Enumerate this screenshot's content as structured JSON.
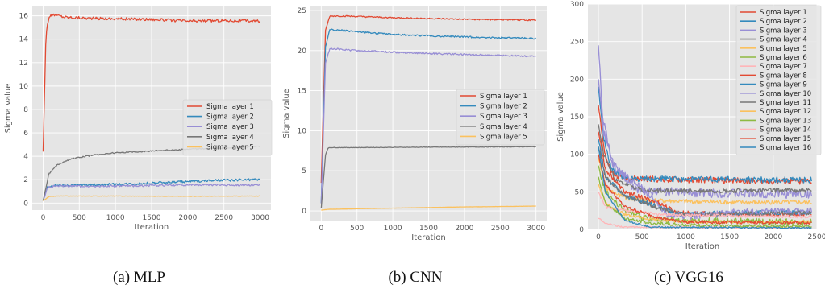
{
  "charts": [
    {
      "caption": "(a) MLP",
      "chart_data": {
        "type": "line",
        "xlabel": "Iteration",
        "ylabel": "Sigma value",
        "xlim": [
          -150,
          3150
        ],
        "ylim": [
          -0.6,
          16.8
        ],
        "xticks": [
          0,
          500,
          1000,
          1500,
          2000,
          2500,
          3000
        ],
        "yticks": [
          0,
          2,
          4,
          6,
          8,
          10,
          12,
          14,
          16
        ],
        "legend": "center-right",
        "grid": true,
        "series": [
          {
            "name": "Sigma layer 1",
            "color": "#E24A33",
            "points": [
              [
                0,
                4.4
              ],
              [
                40,
                14.5
              ],
              [
                80,
                15.9
              ],
              [
                150,
                16.1
              ],
              [
                300,
                15.9
              ],
              [
                600,
                15.8
              ],
              [
                1000,
                15.75
              ],
              [
                1500,
                15.7
              ],
              [
                2000,
                15.55
              ],
              [
                2500,
                15.6
              ],
              [
                3000,
                15.55
              ]
            ],
            "noise": 0.12
          },
          {
            "name": "Sigma layer 2",
            "color": "#348ABD",
            "points": [
              [
                0,
                0.2
              ],
              [
                60,
                1.4
              ],
              [
                150,
                1.5
              ],
              [
                500,
                1.55
              ],
              [
                1000,
                1.6
              ],
              [
                1500,
                1.7
              ],
              [
                2000,
                1.85
              ],
              [
                2500,
                1.95
              ],
              [
                3000,
                2.0
              ]
            ],
            "noise": 0.1
          },
          {
            "name": "Sigma layer 3",
            "color": "#988ED5",
            "points": [
              [
                0,
                0.2
              ],
              [
                60,
                1.3
              ],
              [
                150,
                1.45
              ],
              [
                500,
                1.45
              ],
              [
                1000,
                1.45
              ],
              [
                1500,
                1.5
              ],
              [
                2000,
                1.55
              ],
              [
                2500,
                1.55
              ],
              [
                3000,
                1.55
              ]
            ],
            "noise": 0.08
          },
          {
            "name": "Sigma layer 4",
            "color": "#777777",
            "points": [
              [
                0,
                0.2
              ],
              [
                80,
                2.5
              ],
              [
                200,
                3.3
              ],
              [
                400,
                3.8
              ],
              [
                700,
                4.1
              ],
              [
                1000,
                4.3
              ],
              [
                1500,
                4.45
              ],
              [
                2000,
                4.6
              ],
              [
                2500,
                4.7
              ],
              [
                3000,
                4.85
              ]
            ],
            "noise": 0.05
          },
          {
            "name": "Sigma layer 5",
            "color": "#FBC15E",
            "points": [
              [
                0,
                0.2
              ],
              [
                80,
                0.55
              ],
              [
                200,
                0.6
              ],
              [
                1000,
                0.6
              ],
              [
                2000,
                0.58
              ],
              [
                3000,
                0.6
              ]
            ],
            "noise": 0.02
          }
        ]
      }
    },
    {
      "caption": "(b) CNN",
      "chart_data": {
        "type": "line",
        "xlabel": "Iteration",
        "ylabel": "Sigma value",
        "xlim": [
          -150,
          3150
        ],
        "ylim": [
          -1.2,
          25.5
        ],
        "xticks": [
          0,
          500,
          1000,
          1500,
          2000,
          2500,
          3000
        ],
        "yticks": [
          0,
          5,
          10,
          15,
          20,
          25
        ],
        "legend": "center-right",
        "grid": true,
        "series": [
          {
            "name": "Sigma layer 1",
            "color": "#E24A33",
            "points": [
              [
                0,
                3.5
              ],
              [
                60,
                22.5
              ],
              [
                120,
                24.3
              ],
              [
                300,
                24.3
              ],
              [
                1000,
                24.1
              ],
              [
                2000,
                23.9
              ],
              [
                3000,
                23.8
              ]
            ],
            "noise": 0.08
          },
          {
            "name": "Sigma layer 2",
            "color": "#348ABD",
            "points": [
              [
                0,
                1.0
              ],
              [
                60,
                20.5
              ],
              [
                120,
                22.6
              ],
              [
                300,
                22.5
              ],
              [
                1000,
                22.0
              ],
              [
                2000,
                21.7
              ],
              [
                3000,
                21.5
              ]
            ],
            "noise": 0.1
          },
          {
            "name": "Sigma layer 3",
            "color": "#988ED5",
            "points": [
              [
                0,
                0.8
              ],
              [
                60,
                18.5
              ],
              [
                120,
                20.3
              ],
              [
                300,
                20.1
              ],
              [
                1000,
                19.8
              ],
              [
                2000,
                19.5
              ],
              [
                3000,
                19.3
              ]
            ],
            "noise": 0.1
          },
          {
            "name": "Sigma layer 4",
            "color": "#777777",
            "points": [
              [
                0,
                0.3
              ],
              [
                60,
                7.0
              ],
              [
                100,
                7.9
              ],
              [
                500,
                7.9
              ],
              [
                1500,
                7.95
              ],
              [
                3000,
                8.0
              ]
            ],
            "noise": 0.03
          },
          {
            "name": "Sigma layer 5",
            "color": "#FBC15E",
            "points": [
              [
                0,
                0.1
              ],
              [
                100,
                0.2
              ],
              [
                1000,
                0.35
              ],
              [
                2000,
                0.5
              ],
              [
                3000,
                0.6
              ]
            ],
            "noise": 0.01
          }
        ]
      }
    },
    {
      "caption": "(c) VGG16",
      "chart_data": {
        "type": "line",
        "xlabel": "Iteration",
        "ylabel": "Sigma value",
        "xlim": [
          -120,
          2500
        ],
        "ylim": [
          0,
          300
        ],
        "xticks": [
          0,
          500,
          1000,
          1500,
          2000,
          2500
        ],
        "yticks": [
          0,
          50,
          100,
          150,
          200,
          250,
          300
        ],
        "legend": "upper-right",
        "grid": true,
        "series": [
          {
            "name": "Sigma layer 1",
            "color": "#E24A33",
            "points": [
              [
                0,
                165
              ],
              [
                60,
                110
              ],
              [
                150,
                75
              ],
              [
                300,
                68
              ],
              [
                1000,
                66
              ],
              [
                2000,
                64
              ],
              [
                2440,
                64
              ]
            ],
            "noise": 4
          },
          {
            "name": "Sigma layer 2",
            "color": "#348ABD",
            "points": [
              [
                0,
                190
              ],
              [
                60,
                120
              ],
              [
                150,
                80
              ],
              [
                300,
                68
              ],
              [
                1000,
                67
              ],
              [
                2000,
                66
              ],
              [
                2440,
                66
              ]
            ],
            "noise": 4
          },
          {
            "name": "Sigma layer 3",
            "color": "#988ED5",
            "points": [
              [
                0,
                245
              ],
              [
                50,
                150
              ],
              [
                150,
                90
              ],
              [
                400,
                55
              ],
              [
                800,
                50
              ],
              [
                1500,
                48
              ],
              [
                2440,
                47
              ]
            ],
            "noise": 6
          },
          {
            "name": "Sigma layer 4",
            "color": "#777777",
            "points": [
              [
                0,
                140
              ],
              [
                60,
                100
              ],
              [
                200,
                65
              ],
              [
                500,
                52
              ],
              [
                1000,
                51
              ],
              [
                2000,
                52
              ],
              [
                2440,
                52
              ]
            ],
            "noise": 3
          },
          {
            "name": "Sigma layer 5",
            "color": "#FBC15E",
            "points": [
              [
                0,
                95
              ],
              [
                80,
                55
              ],
              [
                300,
                42
              ],
              [
                700,
                38
              ],
              [
                1500,
                36
              ],
              [
                2440,
                36
              ]
            ],
            "noise": 3
          },
          {
            "name": "Sigma layer 6",
            "color": "#8EBA42",
            "points": [
              [
                0,
                85
              ],
              [
                80,
                50
              ],
              [
                250,
                30
              ],
              [
                500,
                15
              ],
              [
                900,
                12
              ],
              [
                2440,
                10
              ]
            ],
            "noise": 4
          },
          {
            "name": "Sigma layer 7",
            "color": "#FFB5B8",
            "points": [
              [
                0,
                15
              ],
              [
                80,
                8
              ],
              [
                300,
                3
              ],
              [
                2440,
                2
              ]
            ],
            "noise": 1
          },
          {
            "name": "Sigma layer 8",
            "color": "#E24A33",
            "points": [
              [
                0,
                130
              ],
              [
                80,
                80
              ],
              [
                300,
                50
              ],
              [
                700,
                35
              ],
              [
                900,
                22
              ],
              [
                1500,
                20
              ],
              [
                2440,
                20
              ]
            ],
            "noise": 3
          },
          {
            "name": "Sigma layer 9",
            "color": "#348ABD",
            "points": [
              [
                0,
                120
              ],
              [
                80,
                70
              ],
              [
                300,
                45
              ],
              [
                700,
                30
              ],
              [
                900,
                20
              ],
              [
                1500,
                22
              ],
              [
                2440,
                23
              ]
            ],
            "noise": 3
          },
          {
            "name": "Sigma layer 10",
            "color": "#988ED5",
            "points": [
              [
                0,
                200
              ],
              [
                60,
                130
              ],
              [
                200,
                80
              ],
              [
                500,
                55
              ],
              [
                800,
                20
              ],
              [
                1000,
                18
              ],
              [
                1500,
                22
              ],
              [
                2440,
                24
              ]
            ],
            "noise": 5
          },
          {
            "name": "Sigma layer 11",
            "color": "#777777",
            "points": [
              [
                0,
                110
              ],
              [
                80,
                70
              ],
              [
                300,
                45
              ],
              [
                700,
                28
              ],
              [
                1000,
                20
              ],
              [
                2000,
                21
              ],
              [
                2440,
                22
              ]
            ],
            "noise": 3
          },
          {
            "name": "Sigma layer 12",
            "color": "#FBC15E",
            "points": [
              [
                0,
                60
              ],
              [
                80,
                35
              ],
              [
                300,
                20
              ],
              [
                700,
                12
              ],
              [
                1200,
                10
              ],
              [
                2440,
                10
              ]
            ],
            "noise": 2
          },
          {
            "name": "Sigma layer 13",
            "color": "#8EBA42",
            "points": [
              [
                0,
                70
              ],
              [
                80,
                35
              ],
              [
                300,
                15
              ],
              [
                600,
                8
              ],
              [
                1200,
                5
              ],
              [
                2440,
                4
              ]
            ],
            "noise": 2
          },
          {
            "name": "Sigma layer 14",
            "color": "#FFB5B8",
            "points": [
              [
                0,
                50
              ],
              [
                80,
                30
              ],
              [
                300,
                25
              ],
              [
                700,
                20
              ],
              [
                1500,
                18
              ],
              [
                2440,
                17
              ]
            ],
            "noise": 2
          },
          {
            "name": "Sigma layer 15",
            "color": "#E24A33",
            "points": [
              [
                0,
                100
              ],
              [
                80,
                60
              ],
              [
                300,
                30
              ],
              [
                700,
                15
              ],
              [
                1000,
                10
              ],
              [
                2000,
                9
              ],
              [
                2440,
                9
              ]
            ],
            "noise": 2
          },
          {
            "name": "Sigma layer 16",
            "color": "#348ABD",
            "points": [
              [
                0,
                110
              ],
              [
                80,
                50
              ],
              [
                300,
                12
              ],
              [
                600,
                3
              ],
              [
                2440,
                2
              ]
            ],
            "noise": 1
          }
        ]
      }
    }
  ]
}
